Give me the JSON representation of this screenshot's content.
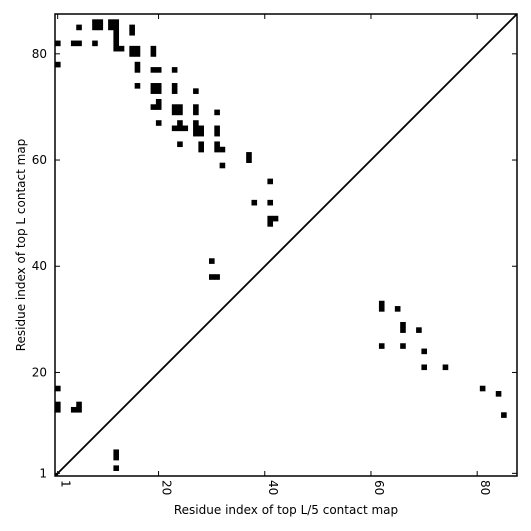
{
  "chart_data": {
    "type": "heatmap",
    "title": "",
    "xlabel": "Residue index of top L/5 contact map",
    "ylabel": "Residue index of top L contact map",
    "xlim": [
      0.5,
      87.5
    ],
    "ylim": [
      0.5,
      87.5
    ],
    "xticks": [
      1,
      20,
      40,
      60,
      80
    ],
    "yticks": [
      1,
      20,
      40,
      60,
      80
    ],
    "x_tick_labels": [
      "1",
      "20",
      "40",
      "60",
      "80"
    ],
    "y_tick_labels": [
      "1",
      "20",
      "40",
      "60",
      "80"
    ],
    "grid": false,
    "diagonal_line": true,
    "mark_color": "#000000",
    "upper_contacts": [
      [
        1,
        82
      ],
      [
        1,
        78
      ],
      [
        5,
        85
      ],
      [
        5,
        82
      ],
      [
        4,
        82
      ],
      [
        8,
        82
      ],
      [
        8,
        86
      ],
      [
        9,
        86
      ],
      [
        8,
        85
      ],
      [
        9,
        85
      ],
      [
        11,
        86
      ],
      [
        12,
        86
      ],
      [
        11,
        85
      ],
      [
        12,
        85
      ],
      [
        12,
        84
      ],
      [
        12,
        83
      ],
      [
        12,
        82
      ],
      [
        12,
        81
      ],
      [
        13,
        81
      ],
      [
        15,
        85
      ],
      [
        15,
        84
      ],
      [
        15,
        81
      ],
      [
        16,
        81
      ],
      [
        15,
        80
      ],
      [
        16,
        80
      ],
      [
        16,
        78
      ],
      [
        16,
        77
      ],
      [
        16,
        74
      ],
      [
        19,
        81
      ],
      [
        19,
        80
      ],
      [
        19,
        77
      ],
      [
        20,
        77
      ],
      [
        19,
        74
      ],
      [
        20,
        74
      ],
      [
        19,
        73
      ],
      [
        20,
        73
      ],
      [
        19,
        70
      ],
      [
        20,
        71
      ],
      [
        20,
        70
      ],
      [
        20,
        67
      ],
      [
        23,
        77
      ],
      [
        23,
        74
      ],
      [
        23,
        73
      ],
      [
        23,
        70
      ],
      [
        24,
        70
      ],
      [
        23,
        69
      ],
      [
        24,
        69
      ],
      [
        24,
        67
      ],
      [
        23,
        66
      ],
      [
        24,
        66
      ],
      [
        25,
        66
      ],
      [
        24,
        63
      ],
      [
        27,
        73
      ],
      [
        27,
        70
      ],
      [
        27,
        69
      ],
      [
        27,
        67
      ],
      [
        27,
        66
      ],
      [
        28,
        66
      ],
      [
        27,
        65
      ],
      [
        28,
        65
      ],
      [
        28,
        63
      ],
      [
        28,
        62
      ],
      [
        31,
        69
      ],
      [
        31,
        66
      ],
      [
        31,
        65
      ],
      [
        31,
        63
      ],
      [
        31,
        62
      ],
      [
        32,
        62
      ],
      [
        32,
        59
      ],
      [
        37,
        61
      ],
      [
        37,
        60
      ],
      [
        38,
        52
      ],
      [
        41,
        56
      ],
      [
        41,
        52
      ],
      [
        41,
        49
      ],
      [
        42,
        49
      ],
      [
        41,
        48
      ],
      [
        30,
        41
      ],
      [
        30,
        38
      ],
      [
        31,
        38
      ]
    ],
    "lower_contacts": [
      [
        62,
        33
      ],
      [
        62,
        32
      ],
      [
        65,
        32
      ],
      [
        66,
        29
      ],
      [
        66,
        28
      ],
      [
        69,
        28
      ],
      [
        62,
        25
      ],
      [
        66,
        25
      ],
      [
        70,
        24
      ],
      [
        70,
        21
      ],
      [
        74,
        21
      ],
      [
        81,
        17
      ],
      [
        84,
        16
      ],
      [
        85,
        12
      ],
      [
        1,
        17
      ],
      [
        1,
        14
      ],
      [
        1,
        13
      ],
      [
        4,
        13
      ],
      [
        5,
        14
      ],
      [
        5,
        13
      ],
      [
        12,
        5
      ],
      [
        12,
        4
      ],
      [
        12,
        2
      ]
    ]
  }
}
